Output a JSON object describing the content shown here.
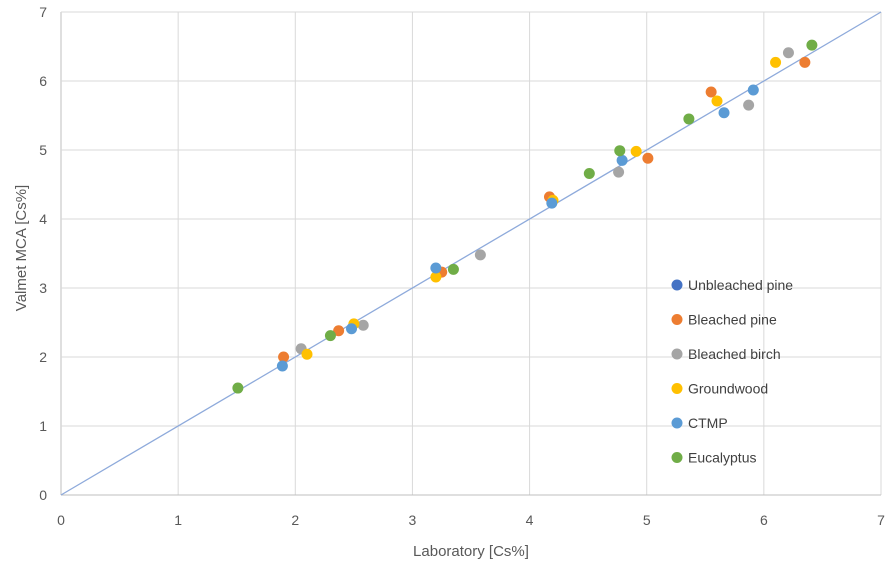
{
  "chart_data": {
    "type": "scatter",
    "title": "",
    "xlabel": "Laboratory [Cs%]",
    "ylabel": "Valmet MCA [Cs%]",
    "xlim": [
      0,
      7
    ],
    "ylim": [
      0,
      7
    ],
    "xticks": [
      "0",
      "1",
      "2",
      "3",
      "4",
      "5",
      "6",
      "7"
    ],
    "yticks": [
      "0",
      "1",
      "2",
      "3",
      "4",
      "5",
      "6",
      "7"
    ],
    "grid": true,
    "legend_position": "right",
    "reference_line": {
      "x": [
        0,
        7
      ],
      "y": [
        0,
        7
      ],
      "color": "#8eaadb"
    },
    "series": [
      {
        "name": "Unbleached pine",
        "color": "#4472c4",
        "points": []
      },
      {
        "name": "Bleached pine",
        "color": "#ed7d31",
        "points": [
          [
            1.9,
            2.0
          ],
          [
            2.37,
            2.38
          ],
          [
            3.25,
            3.23
          ],
          [
            4.17,
            4.32
          ],
          [
            5.01,
            4.88
          ],
          [
            5.55,
            5.84
          ],
          [
            6.35,
            6.27
          ]
        ]
      },
      {
        "name": "Bleached birch",
        "color": "#a5a5a5",
        "points": [
          [
            2.05,
            2.12
          ],
          [
            2.58,
            2.46
          ],
          [
            3.58,
            3.48
          ],
          [
            4.76,
            4.68
          ],
          [
            5.87,
            5.65
          ],
          [
            6.21,
            6.41
          ]
        ]
      },
      {
        "name": "Groundwood",
        "color": "#ffc000",
        "points": [
          [
            2.1,
            2.04
          ],
          [
            2.5,
            2.48
          ],
          [
            3.2,
            3.16
          ],
          [
            4.2,
            4.27
          ],
          [
            4.91,
            4.98
          ],
          [
            5.6,
            5.71
          ],
          [
            6.1,
            6.27
          ]
        ]
      },
      {
        "name": "CTMP",
        "color": "#5b9bd5",
        "points": [
          [
            1.89,
            1.87
          ],
          [
            2.48,
            2.41
          ],
          [
            3.2,
            3.29
          ],
          [
            4.19,
            4.23
          ],
          [
            4.79,
            4.85
          ],
          [
            5.66,
            5.54
          ],
          [
            5.91,
            5.87
          ]
        ]
      },
      {
        "name": "Eucalyptus",
        "color": "#70ad47",
        "points": [
          [
            1.51,
            1.55
          ],
          [
            2.3,
            2.31
          ],
          [
            3.35,
            3.27
          ],
          [
            4.51,
            4.66
          ],
          [
            4.77,
            4.99
          ],
          [
            5.36,
            5.45
          ],
          [
            6.41,
            6.52
          ]
        ]
      }
    ]
  }
}
